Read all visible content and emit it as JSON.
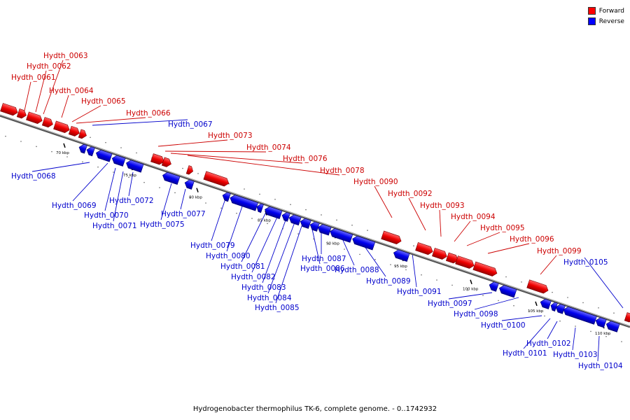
{
  "legend": {
    "forward_label": "Forward",
    "forward_color": "#ff0000",
    "reverse_label": "Reverse",
    "reverse_color": "#0000ff"
  },
  "caption": "Hydrogenobacter thermophilus TK-6, complete genome. - 0..1742932",
  "scale_ticks": [
    "70 kbp",
    "75 kbp",
    "80 kbp",
    "85 kbp",
    "90 kbp",
    "95 kbp",
    "100 kbp",
    "105 kbp",
    "110 kbp"
  ],
  "forward_genes": [
    "Hydth_0061",
    "Hydth_0062",
    "Hydth_0063",
    "Hydth_0064",
    "Hydth_0065",
    "Hydth_0066",
    "Hydth_0073",
    "Hydth_0074",
    "Hydth_0076",
    "Hydth_0078",
    "Hydth_0090",
    "Hydth_0092",
    "Hydth_0093",
    "Hydth_0094",
    "Hydth_0095",
    "Hydth_0096",
    "Hydth_0099"
  ],
  "reverse_genes": [
    "Hydth_0067",
    "Hydth_0068",
    "Hydth_0069",
    "Hydth_0070",
    "Hydth_0071",
    "Hydth_0072",
    "Hydth_0075",
    "Hydth_0077",
    "Hydth_0079",
    "Hydth_0080",
    "Hydth_0081",
    "Hydth_0082",
    "Hydth_0083",
    "Hydth_0084",
    "Hydth_0085",
    "Hydth_0086",
    "Hydth_0087",
    "Hydth_0088",
    "Hydth_0089",
    "Hydth_0091",
    "Hydth_0097",
    "Hydth_0098",
    "Hydth_0100",
    "Hydth_0101",
    "Hydth_0102",
    "Hydth_0103",
    "Hydth_0104",
    "Hydth_0105"
  ]
}
